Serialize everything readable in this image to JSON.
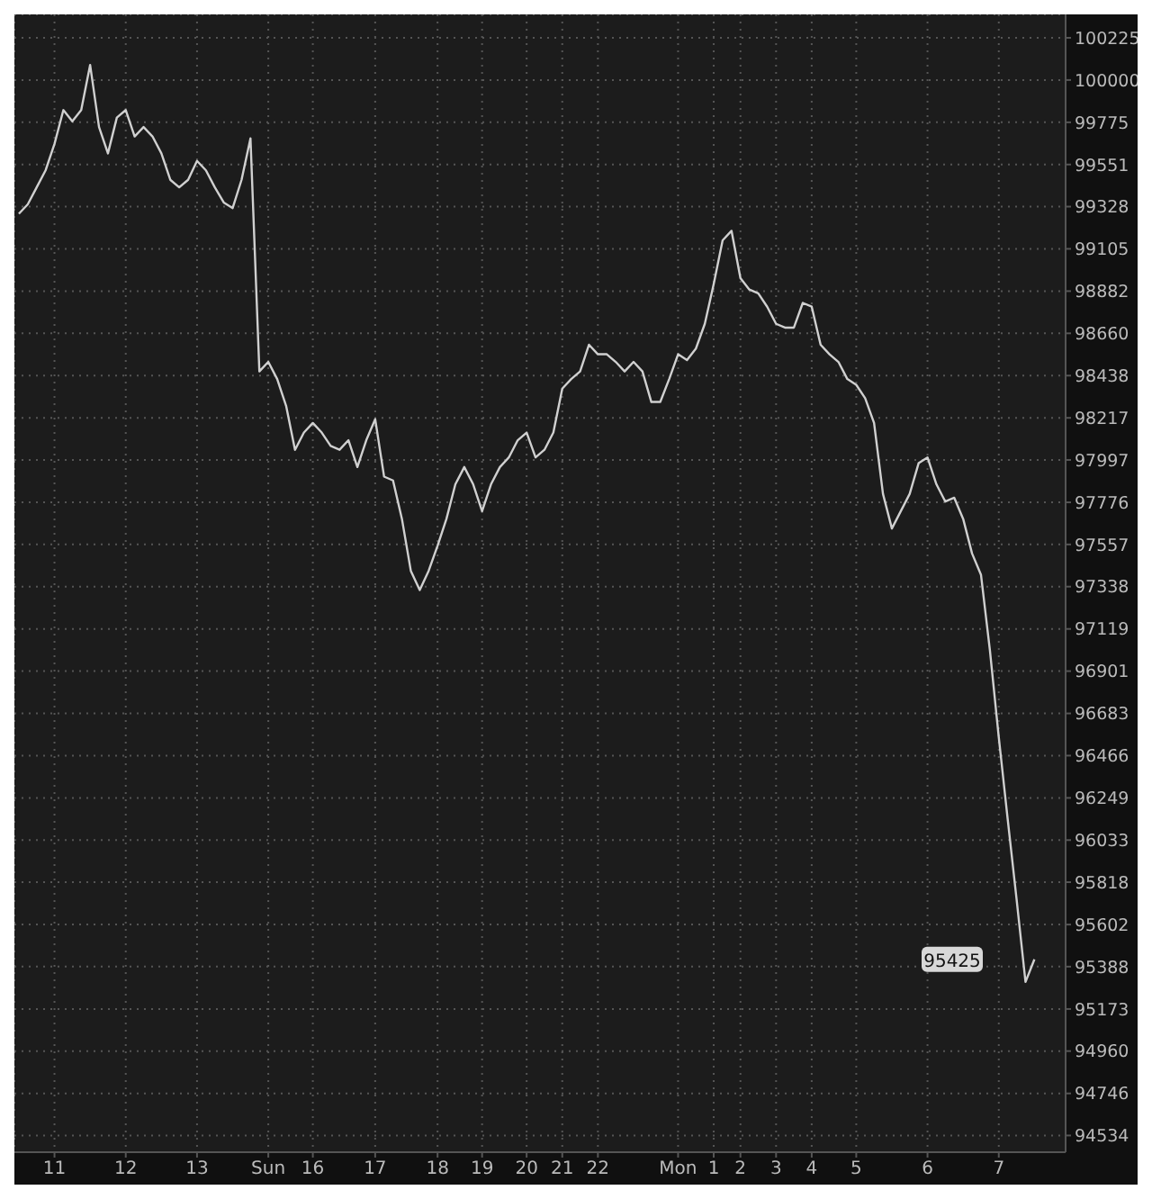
{
  "chart_data": {
    "type": "line",
    "categories": [
      null,
      null,
      null,
      null,
      "11",
      null,
      null,
      null,
      null,
      null,
      null,
      null,
      "12",
      null,
      null,
      null,
      null,
      null,
      null,
      null,
      "13",
      null,
      null,
      null,
      null,
      null,
      null,
      null,
      "Sun",
      null,
      null,
      null,
      null,
      "16",
      null,
      null,
      null,
      null,
      null,
      null,
      "17",
      null,
      null,
      null,
      null,
      null,
      null,
      "18",
      null,
      null,
      null,
      null,
      "19",
      null,
      null,
      null,
      null,
      "20",
      null,
      null,
      null,
      "21",
      null,
      null,
      null,
      "22",
      null,
      null,
      null,
      null,
      null,
      null,
      null,
      null,
      "Mon",
      null,
      null,
      null,
      "1",
      null,
      null,
      "2",
      null,
      null,
      null,
      "3",
      null,
      null,
      null,
      "4",
      null,
      null,
      null,
      null,
      "5",
      null,
      null,
      null,
      null,
      null,
      null,
      null,
      "6",
      null,
      null,
      null,
      null,
      null,
      null,
      null,
      "7",
      null,
      null,
      null,
      null,
      null,
      null,
      null
    ],
    "series": [
      {
        "color": "#d0d0d0",
        "values": [
          99290,
          99340,
          99430,
          99520,
          99660,
          99840,
          99780,
          99840,
          100080,
          99750,
          99610,
          99800,
          99840,
          99700,
          99750,
          99700,
          99610,
          99470,
          99430,
          99470,
          99570,
          99520,
          99430,
          99350,
          99320,
          99470,
          99690,
          98460,
          98510,
          98420,
          98280,
          98050,
          98140,
          98190,
          98140,
          98070,
          98050,
          98100,
          97960,
          98100,
          98210,
          97910,
          97890,
          97690,
          97420,
          97320,
          97420,
          97550,
          97690,
          97870,
          97960,
          97870,
          97730,
          97870,
          97960,
          98010,
          98100,
          98140,
          98010,
          98050,
          98140,
          98370,
          98420,
          98460,
          98600,
          98550,
          98550,
          98510,
          98460,
          98510,
          98460,
          98300,
          98300,
          98420,
          98550,
          98520,
          98580,
          98710,
          98920,
          99150,
          99200,
          98950,
          98890,
          98870,
          98800,
          98710,
          98690,
          98690,
          98820,
          98800,
          98600,
          98550,
          98510,
          98420,
          98390,
          98320,
          98190,
          97820,
          97640,
          97730,
          97820,
          97980,
          98010,
          97870,
          97780,
          97800,
          97690,
          97510,
          97400,
          97010,
          96560,
          96140,
          95730,
          95310,
          95425,
          null,
          null,
          null
        ]
      }
    ],
    "ylim": [
      94450,
      100350
    ],
    "yticks": [
      100225,
      100000,
      99775,
      99551,
      99328,
      99105,
      98882,
      98660,
      98438,
      98217,
      97997,
      97776,
      97557,
      97338,
      97119,
      96901,
      96683,
      96466,
      96249,
      96033,
      95818,
      95602,
      95388,
      95173,
      94960,
      94746,
      94534
    ],
    "log": true,
    "grid": true,
    "marker": "none",
    "line_style": "solid",
    "annotations": [
      {
        "text": "95425",
        "y": 95425
      }
    ]
  }
}
